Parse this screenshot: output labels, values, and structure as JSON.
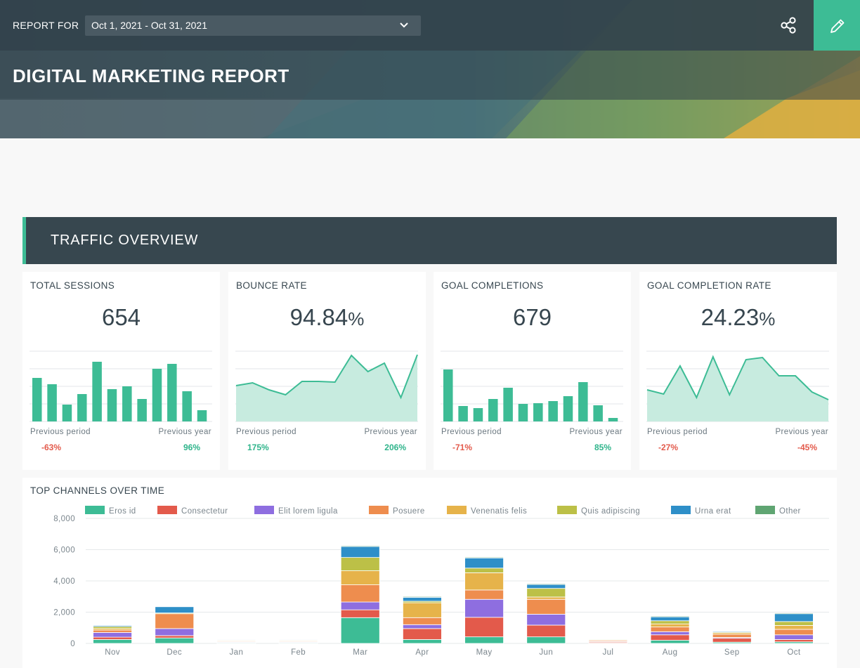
{
  "header": {
    "report_for_label": "REPORT FOR",
    "date_range": "Oct 1, 2021 - Oct 31, 2021",
    "title": "DIGITAL MARKETING REPORT",
    "accent_color": "#3dbc95"
  },
  "section": {
    "title": "TRAFFIC OVERVIEW"
  },
  "kpis": [
    {
      "label": "TOTAL SESSIONS",
      "value": "654",
      "unit": "",
      "prev_period_label": "Previous period",
      "prev_year_label": "Previous year",
      "prev_period": "-63%",
      "prev_year": "96%",
      "chart": "bar",
      "series": [
        62,
        53,
        24,
        39,
        85,
        46,
        50,
        32,
        75,
        82,
        43,
        16
      ]
    },
    {
      "label": "BOUNCE RATE",
      "value": "94.84",
      "unit": "%",
      "prev_period_label": "Previous period",
      "prev_year_label": "Previous year",
      "prev_period": "175%",
      "prev_year": "206%",
      "chart": "area",
      "series": [
        51,
        55,
        45,
        38,
        57,
        57,
        56,
        94,
        71,
        83,
        34,
        95
      ]
    },
    {
      "label": "GOAL COMPLETIONS",
      "value": "679",
      "unit": "",
      "prev_period_label": "Previous period",
      "prev_year_label": "Previous year",
      "prev_period": "-71%",
      "prev_year": "85%",
      "chart": "bar",
      "series": [
        74,
        22,
        19,
        32,
        48,
        25,
        26,
        29,
        36,
        56,
        23,
        5
      ]
    },
    {
      "label": "GOAL COMPLETION RATE",
      "value": "24.23",
      "unit": "%",
      "prev_period_label": "Previous period",
      "prev_year_label": "Previous year",
      "prev_period": "-27%",
      "prev_year": "-45%",
      "chart": "area",
      "series": [
        45,
        39,
        79,
        34,
        92,
        38,
        88,
        91,
        65,
        65,
        42,
        31
      ]
    }
  ],
  "channels_chart": {
    "title": "TOP CHANNELS OVER TIME",
    "chart_data": {
      "type": "bar",
      "stacked": true,
      "categories": [
        "Nov",
        "Dec",
        "Jan",
        "Feb",
        "Mar",
        "Apr",
        "May",
        "Jun",
        "Jul",
        "Aug",
        "Sep",
        "Oct"
      ],
      "ylim": [
        0,
        8000
      ],
      "yticks": [
        0,
        2000,
        4000,
        6000,
        8000
      ],
      "ytick_labels": [
        "0",
        "2,000",
        "4,000",
        "6,000",
        "8,000"
      ],
      "grid": true,
      "legend": "top",
      "series": [
        {
          "name": "Eros id",
          "color": "#3dbc95",
          "values": [
            250,
            350,
            40,
            40,
            1650,
            250,
            420,
            420,
            20,
            200,
            80,
            100
          ]
        },
        {
          "name": "Consectetur",
          "color": "#e35a4b",
          "values": [
            150,
            150,
            30,
            30,
            500,
            700,
            1250,
            750,
            60,
            350,
            250,
            150
          ]
        },
        {
          "name": "Elit lorem ligula",
          "color": "#8e6ee0",
          "values": [
            300,
            450,
            40,
            40,
            500,
            250,
            1150,
            700,
            40,
            200,
            50,
            300
          ]
        },
        {
          "name": "Posuere",
          "color": "#ee8d4e",
          "values": [
            150,
            950,
            40,
            40,
            1100,
            450,
            600,
            950,
            60,
            300,
            200,
            350
          ]
        },
        {
          "name": "Venenatis felis",
          "color": "#e6b34a",
          "values": [
            100,
            0,
            40,
            40,
            900,
            950,
            1100,
            150,
            40,
            200,
            100,
            250
          ]
        },
        {
          "name": "Quis adipiscing",
          "color": "#bcc047",
          "values": [
            130,
            50,
            40,
            40,
            850,
            100,
            300,
            550,
            40,
            200,
            50,
            250
          ]
        },
        {
          "name": "Urna erat",
          "color": "#2e8fc8",
          "values": [
            70,
            400,
            40,
            40,
            700,
            250,
            650,
            250,
            30,
            250,
            50,
            500
          ]
        },
        {
          "name": "Other",
          "color": "#5fa572",
          "values": [
            20,
            20,
            20,
            20,
            50,
            50,
            50,
            50,
            20,
            50,
            20,
            50
          ]
        }
      ]
    }
  }
}
